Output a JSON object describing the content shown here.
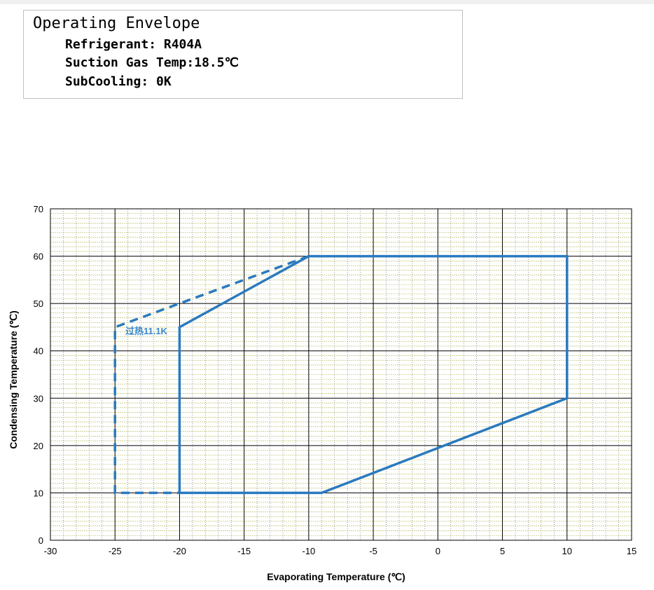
{
  "info": {
    "title": "Operating Envelope",
    "line1": "Refrigerant: R404A",
    "line2": "Suction Gas Temp:18.5℃",
    "line3": "SubCooling: 0K"
  },
  "chart_data": {
    "type": "line",
    "xlabel": "Evaporating  Temperature (℃)",
    "ylabel": "Condensing  Temperature (℃)",
    "xlim": [
      -30,
      15
    ],
    "ylim": [
      0,
      70
    ],
    "xticks": [
      -30,
      -25,
      -20,
      -15,
      -10,
      -5,
      0,
      5,
      10,
      15
    ],
    "yticks": [
      0,
      10,
      20,
      30,
      40,
      50,
      60,
      70
    ],
    "grid": true,
    "series": [
      {
        "style": "solid",
        "color": "#2a7abf",
        "points": [
          [
            -20,
            10
          ],
          [
            -20,
            45
          ],
          [
            -10,
            60
          ],
          [
            10,
            60
          ],
          [
            10,
            30
          ],
          [
            -9,
            10
          ],
          [
            -20,
            10
          ]
        ]
      },
      {
        "style": "dashed",
        "color": "#2a7abf",
        "points": [
          [
            -10,
            60
          ],
          [
            -20,
            50
          ],
          [
            -25,
            45
          ],
          [
            -25,
            10
          ],
          [
            -20,
            10
          ]
        ]
      }
    ],
    "annotations": [
      {
        "text": "过热11.1K",
        "x": -24.2,
        "y": 43.5
      }
    ]
  }
}
